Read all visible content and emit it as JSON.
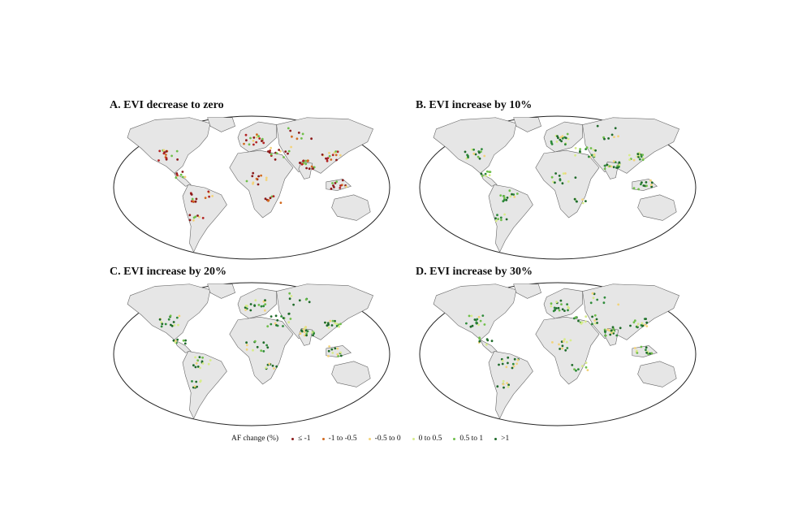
{
  "panels": [
    {
      "id": "A",
      "title": "A. EVI decrease to zero",
      "scenario": "decrease"
    },
    {
      "id": "B",
      "title": "B. EVI increase by 10%",
      "scenario": "increase"
    },
    {
      "id": "C",
      "title": "C. EVI increase by 20%",
      "scenario": "increase"
    },
    {
      "id": "D",
      "title": "D. EVI increase by 30%",
      "scenario": "increase"
    }
  ],
  "legend": {
    "title": "AF change (%)",
    "items": [
      {
        "label": "≤ -1",
        "color": "#8b1a1a"
      },
      {
        "label": "-1 to -0.5",
        "color": "#d2691e"
      },
      {
        "label": "-0.5 to 0",
        "color": "#f3d37a"
      },
      {
        "label": "0 to 0.5",
        "color": "#d7ec8a"
      },
      {
        "label": "0.5 to 1",
        "color": "#6fbf4a"
      },
      {
        "label": ">1",
        "color": "#1f6b2a"
      }
    ]
  },
  "colors": {
    "land": "#e6e6e6",
    "border": "#666666",
    "outline": "#222222"
  }
}
